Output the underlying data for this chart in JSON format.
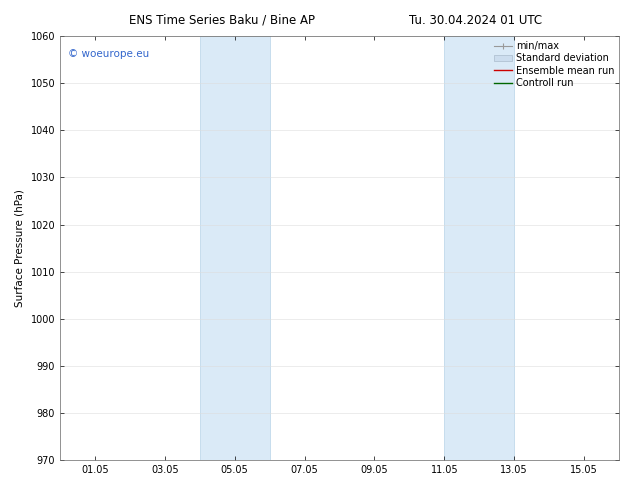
{
  "title_left": "ENS Time Series Baku / Bine AP",
  "title_right": "Tu. 30.04.2024 01 UTC",
  "ylabel": "Surface Pressure (hPa)",
  "ylim": [
    970,
    1060
  ],
  "yticks": [
    970,
    980,
    990,
    1000,
    1010,
    1020,
    1030,
    1040,
    1050,
    1060
  ],
  "xtick_labels": [
    "01.05",
    "03.05",
    "05.05",
    "07.05",
    "09.05",
    "11.05",
    "13.05",
    "15.05"
  ],
  "xtick_positions": [
    1,
    3,
    5,
    7,
    9,
    11,
    13,
    15
  ],
  "xlim": [
    0,
    16
  ],
  "shaded_regions": [
    {
      "xmin": 4.0,
      "xmax": 6.0
    },
    {
      "xmin": 11.0,
      "xmax": 13.0
    }
  ],
  "shaded_color": "#daeaf7",
  "shaded_edge_color": "#b8d4e8",
  "watermark_text": "© woeurope.eu",
  "watermark_color": "#3366cc",
  "bg_color": "#ffffff",
  "title_fontsize": 8.5,
  "label_fontsize": 7.5,
  "tick_fontsize": 7.0,
  "legend_fontsize": 7.0,
  "watermark_fontsize": 7.5,
  "legend_minmax_color": "#999999",
  "legend_std_color": "#ccddee",
  "legend_ens_color": "#cc0000",
  "legend_ctrl_color": "#006600"
}
